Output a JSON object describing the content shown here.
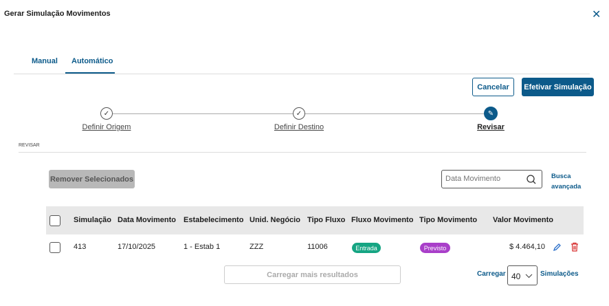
{
  "dialog": {
    "title": "Gerar Simulação Movimentos",
    "close_icon": "close-icon"
  },
  "tabs": [
    {
      "label": "Manual",
      "active": false
    },
    {
      "label": "Automático",
      "active": true
    }
  ],
  "actions": {
    "cancel": "Cancelar",
    "confirm": "Efetivar Simulação"
  },
  "stepper": {
    "steps": [
      {
        "label": "Definir Origem",
        "state": "done"
      },
      {
        "label": "Definir Destino",
        "state": "done"
      },
      {
        "label": "Revisar",
        "state": "active"
      }
    ]
  },
  "section_label": "REVISAR",
  "toolbar": {
    "remove": "Remover Selecionados",
    "search_placeholder": "Data Movimento",
    "advanced_1": "Busca",
    "advanced_2": "avançada"
  },
  "table": {
    "headers": [
      "Simulação",
      "Data Movimento",
      "Estabelecimento",
      "Unid. Negócio",
      "Tipo Fluxo",
      "Fluxo Movimento",
      "Tipo Movimento",
      "Valor Movimento"
    ],
    "rows": [
      {
        "simulacao": "413",
        "data": "17/10/2025",
        "estab": "1 - Estab 1",
        "unid": "ZZZ",
        "tipo_fluxo": "11006",
        "fluxo": "Entrada",
        "tipo": "Previsto",
        "valor": "$ 4.464,10"
      }
    ]
  },
  "footer": {
    "load_more": "Carregar mais resultados",
    "load": "Carregar",
    "page_size": "40",
    "unit": "Simulações"
  },
  "colors": {
    "primary": "#0c5a8a",
    "entrada": "#16a583",
    "previsto": "#a93fc9",
    "delete": "#d62b2b"
  }
}
